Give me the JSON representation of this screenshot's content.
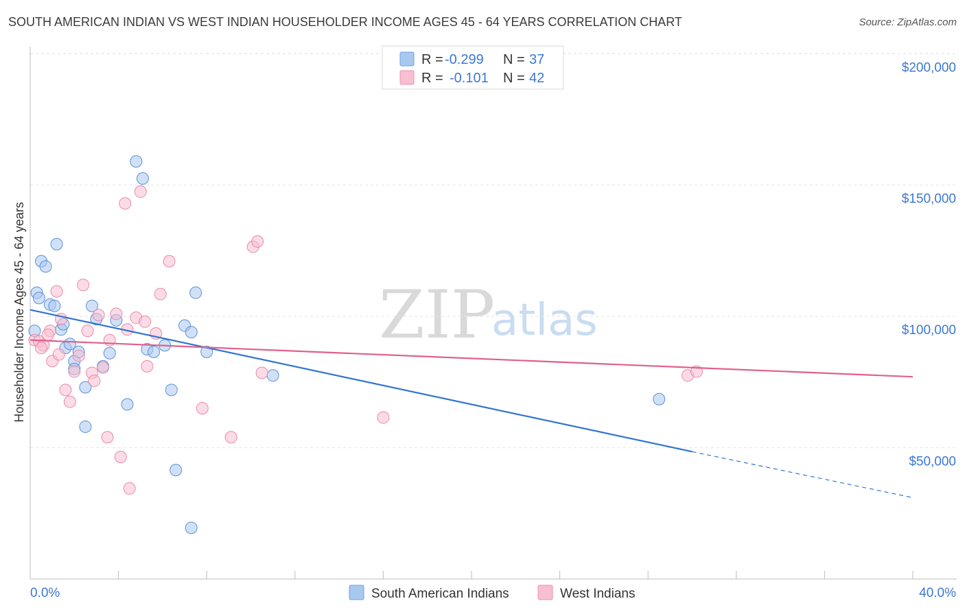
{
  "title": "SOUTH AMERICAN INDIAN VS WEST INDIAN HOUSEHOLDER INCOME AGES 45 - 64 YEARS CORRELATION CHART",
  "source": "Source: ZipAtlas.com",
  "watermark": {
    "zip": "ZIP",
    "atlas": "atlas"
  },
  "chart_data": {
    "type": "scatter",
    "xlabel": "",
    "ylabel": "Householder Income Ages 45 - 64 years",
    "xlim": [
      0,
      40
    ],
    "ylim": [
      0,
      210000
    ],
    "x_tick_labels": [
      {
        "value": 0,
        "label": "0.0%"
      },
      {
        "value": 40,
        "label": "40.0%"
      }
    ],
    "y_tick_labels": [
      {
        "value": 50000,
        "label": "$50,000"
      },
      {
        "value": 100000,
        "label": "$100,000"
      },
      {
        "value": 150000,
        "label": "$150,000"
      },
      {
        "value": 200000,
        "label": "$200,000"
      }
    ],
    "legend": [
      {
        "r_label": "R =",
        "r": "-0.299",
        "n_label": "N =",
        "n": "37",
        "color": "#a9c8f0",
        "stroke": "#6fa0e0"
      },
      {
        "r_label": "R =",
        "r": "-0.101",
        "n_label": "N =",
        "n": "42",
        "color": "#f7bfd1",
        "stroke": "#ec8fae"
      }
    ],
    "series": [
      {
        "name": "South American Indians",
        "fill": "#a9c8f0",
        "stroke": "#5c8fd6",
        "trend_color": "#2f74d0",
        "trend": {
          "x0": 0,
          "y0": 102500,
          "x1": 30,
          "y1": 48500,
          "dash_to_x": 40,
          "dash_to_y": 31000
        },
        "points": [
          [
            0.2,
            94500
          ],
          [
            0.3,
            109000
          ],
          [
            0.4,
            107000
          ],
          [
            0.5,
            121000
          ],
          [
            0.7,
            119000
          ],
          [
            0.9,
            104500
          ],
          [
            1.1,
            104000
          ],
          [
            1.2,
            127500
          ],
          [
            1.4,
            95000
          ],
          [
            1.5,
            97000
          ],
          [
            1.6,
            88000
          ],
          [
            1.8,
            89500
          ],
          [
            2.0,
            83000
          ],
          [
            2.2,
            86500
          ],
          [
            2.5,
            73000
          ],
          [
            2.8,
            104000
          ],
          [
            3.0,
            99000
          ],
          [
            3.3,
            81000
          ],
          [
            3.6,
            86000
          ],
          [
            3.9,
            98500
          ],
          [
            4.4,
            66500
          ],
          [
            4.8,
            159000
          ],
          [
            5.1,
            152500
          ],
          [
            5.3,
            87500
          ],
          [
            5.6,
            86500
          ],
          [
            6.1,
            89000
          ],
          [
            6.4,
            72000
          ],
          [
            6.6,
            41500
          ],
          [
            7.0,
            96500
          ],
          [
            7.3,
            94000
          ],
          [
            7.5,
            109000
          ],
          [
            8.0,
            86500
          ],
          [
            11.0,
            77500
          ],
          [
            7.3,
            19500
          ],
          [
            2.5,
            58000
          ],
          [
            2.0,
            80000
          ],
          [
            28.5,
            68500
          ]
        ]
      },
      {
        "name": "West Indians",
        "fill": "#f7bfd1",
        "stroke": "#e88aa9",
        "trend_color": "#e0608a",
        "trend": {
          "x0": 0,
          "y0": 91000,
          "x1": 40,
          "y1": 77000
        },
        "points": [
          [
            0.2,
            91000
          ],
          [
            0.4,
            90500
          ],
          [
            0.6,
            89000
          ],
          [
            0.9,
            94500
          ],
          [
            1.0,
            83000
          ],
          [
            1.2,
            109500
          ],
          [
            1.4,
            99000
          ],
          [
            1.6,
            72000
          ],
          [
            1.8,
            67500
          ],
          [
            2.0,
            79000
          ],
          [
            2.2,
            85000
          ],
          [
            2.4,
            112000
          ],
          [
            2.6,
            94500
          ],
          [
            2.8,
            78500
          ],
          [
            2.9,
            75500
          ],
          [
            3.1,
            100500
          ],
          [
            3.3,
            80500
          ],
          [
            3.5,
            54000
          ],
          [
            3.6,
            91000
          ],
          [
            3.9,
            101000
          ],
          [
            4.1,
            46500
          ],
          [
            4.4,
            95000
          ],
          [
            4.3,
            143000
          ],
          [
            4.5,
            34500
          ],
          [
            4.8,
            99500
          ],
          [
            5.0,
            147500
          ],
          [
            5.2,
            98000
          ],
          [
            5.3,
            81000
          ],
          [
            5.7,
            93500
          ],
          [
            5.9,
            108500
          ],
          [
            6.3,
            121000
          ],
          [
            7.8,
            65000
          ],
          [
            9.1,
            54000
          ],
          [
            10.1,
            126500
          ],
          [
            10.3,
            128500
          ],
          [
            10.5,
            78500
          ],
          [
            16.0,
            61500
          ],
          [
            29.8,
            77500
          ],
          [
            30.2,
            79000
          ],
          [
            0.8,
            93000
          ],
          [
            0.5,
            88000
          ],
          [
            1.3,
            85500
          ]
        ]
      }
    ]
  }
}
